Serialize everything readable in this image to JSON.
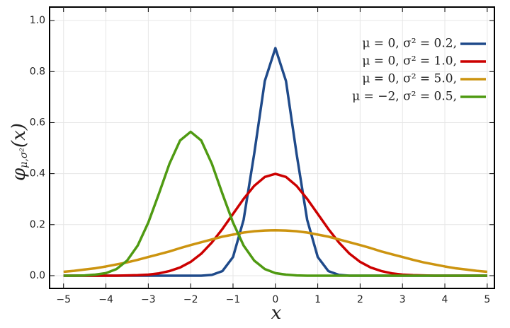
{
  "chart_data": {
    "type": "line",
    "x_label": "x",
    "y_label": {
      "symbol": "φ",
      "subscript": "μ,σ²",
      "argument": "(x)"
    },
    "x": [
      -5,
      -4.75,
      -4.5,
      -4.25,
      -4,
      -3.75,
      -3.5,
      -3.25,
      -3,
      -2.75,
      -2.5,
      -2.25,
      -2,
      -1.75,
      -1.5,
      -1.25,
      -1,
      -0.75,
      -0.5,
      -0.25,
      0,
      0.25,
      0.5,
      0.75,
      1,
      1.25,
      1.5,
      1.75,
      2,
      2.25,
      2.5,
      2.75,
      3,
      3.25,
      3.5,
      3.75,
      4,
      4.25,
      4.5,
      4.75,
      5
    ],
    "series": [
      {
        "name": "μ = 0,    σ² = 0.2,",
        "color": "#1f4a8a",
        "values": [
          0,
          0,
          0,
          0,
          0,
          0,
          0,
          0,
          0,
          0,
          0,
          0,
          0,
          0,
          0.003,
          0.018,
          0.073,
          0.219,
          0.478,
          0.763,
          0.892,
          0.763,
          0.478,
          0.219,
          0.073,
          0.018,
          0.003,
          0,
          0,
          0,
          0,
          0,
          0,
          0,
          0,
          0,
          0,
          0,
          0,
          0,
          0
        ]
      },
      {
        "name": "μ = 0,    σ² = 1.0,",
        "color": "#cc0000",
        "values": [
          0,
          0,
          0,
          0,
          0,
          0,
          0.001,
          0.002,
          0.004,
          0.009,
          0.018,
          0.032,
          0.054,
          0.086,
          0.13,
          0.183,
          0.242,
          0.301,
          0.352,
          0.387,
          0.399,
          0.387,
          0.352,
          0.301,
          0.242,
          0.183,
          0.13,
          0.086,
          0.054,
          0.032,
          0.018,
          0.009,
          0.004,
          0.002,
          0.001,
          0,
          0,
          0,
          0,
          0,
          0
        ]
      },
      {
        "name": "μ = 0,    σ² = 5.0,",
        "color": "#cc9410",
        "values": [
          0.015,
          0.019,
          0.024,
          0.029,
          0.036,
          0.044,
          0.052,
          0.062,
          0.073,
          0.084,
          0.095,
          0.108,
          0.12,
          0.131,
          0.142,
          0.153,
          0.161,
          0.169,
          0.174,
          0.177,
          0.178,
          0.177,
          0.174,
          0.169,
          0.161,
          0.153,
          0.142,
          0.131,
          0.12,
          0.108,
          0.095,
          0.084,
          0.073,
          0.062,
          0.052,
          0.044,
          0.036,
          0.029,
          0.024,
          0.019,
          0.015
        ]
      },
      {
        "name": "μ = −2,  σ² = 0.5,",
        "color": "#4f9a12",
        "values": [
          0,
          0,
          0.001,
          0.004,
          0.01,
          0.026,
          0.059,
          0.118,
          0.208,
          0.321,
          0.439,
          0.53,
          0.564,
          0.53,
          0.439,
          0.321,
          0.208,
          0.118,
          0.059,
          0.026,
          0.01,
          0.004,
          0.001,
          0,
          0,
          0,
          0,
          0,
          0,
          0,
          0,
          0,
          0,
          0,
          0,
          0,
          0,
          0,
          0,
          0,
          0
        ]
      }
    ],
    "xlim": [
      -5.33,
      5.17
    ],
    "ylim": [
      -0.05,
      1.053
    ],
    "xticks": [
      {
        "value": -5,
        "label": "−5"
      },
      {
        "value": -4,
        "label": "−4"
      },
      {
        "value": -3,
        "label": "−3"
      },
      {
        "value": -2,
        "label": "−2"
      },
      {
        "value": -1,
        "label": "−1"
      },
      0,
      1,
      2,
      3,
      4,
      5
    ],
    "yticks": [
      {
        "value": 0,
        "label": "0.0"
      },
      0.2,
      0.4,
      0.6,
      0.8,
      {
        "value": 1,
        "label": "1.0"
      }
    ],
    "grid": true,
    "legend": "upper-right"
  }
}
